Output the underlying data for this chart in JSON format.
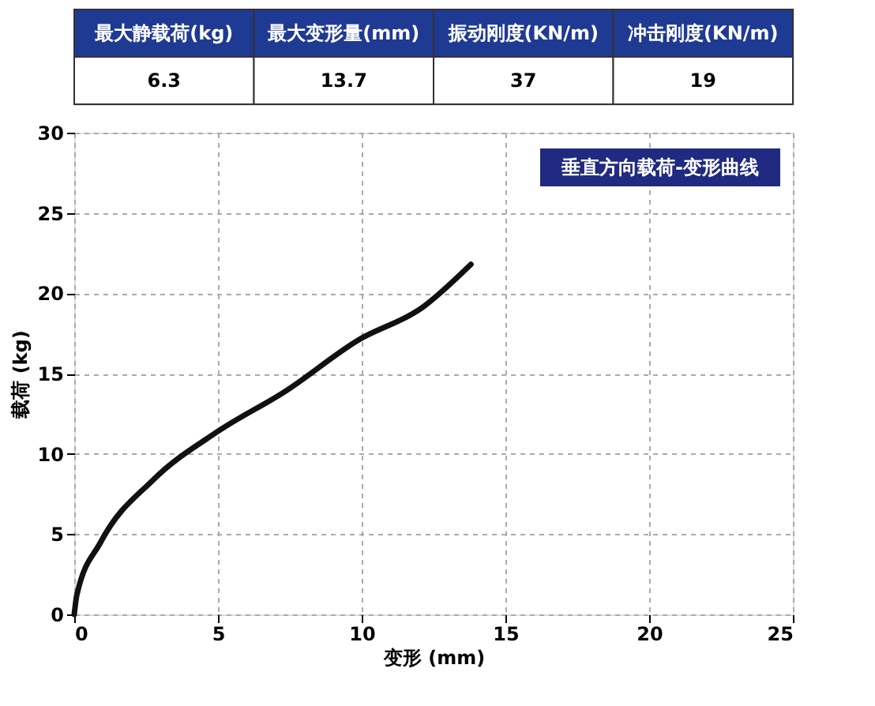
{
  "chart_data": {
    "type": "line",
    "title": "垂直方向载荷-变形曲线",
    "xlabel": "变形 (mm)",
    "ylabel": "载荷 (kg)",
    "annotations": [
      "最大静载荷(kg)",
      "最大变形量(mm)",
      "振动刚度(KN/m)",
      "冲击刚度(KN/m)",
      "6.3",
      "13.7",
      "37",
      "19"
    ],
    "series": [
      {
        "color": "#111111",
        "x": [
          0,
          0.09,
          0.92,
          2.76,
          5,
          7.35,
          9.9,
          12.1,
          13.8
        ],
        "values": [
          0,
          1.2,
          4.5,
          8.4,
          11.4,
          13.9,
          17.1,
          19.1,
          21.8
        ]
      }
    ],
    "xlim": [
      0,
      25
    ],
    "ylim": [
      0,
      30
    ],
    "xticks": [
      0,
      5,
      10,
      15,
      20,
      25
    ],
    "yticks": [
      0,
      5,
      10,
      15,
      20,
      25,
      30
    ],
    "grid": true,
    "marker": "none",
    "line_style": "solid"
  }
}
